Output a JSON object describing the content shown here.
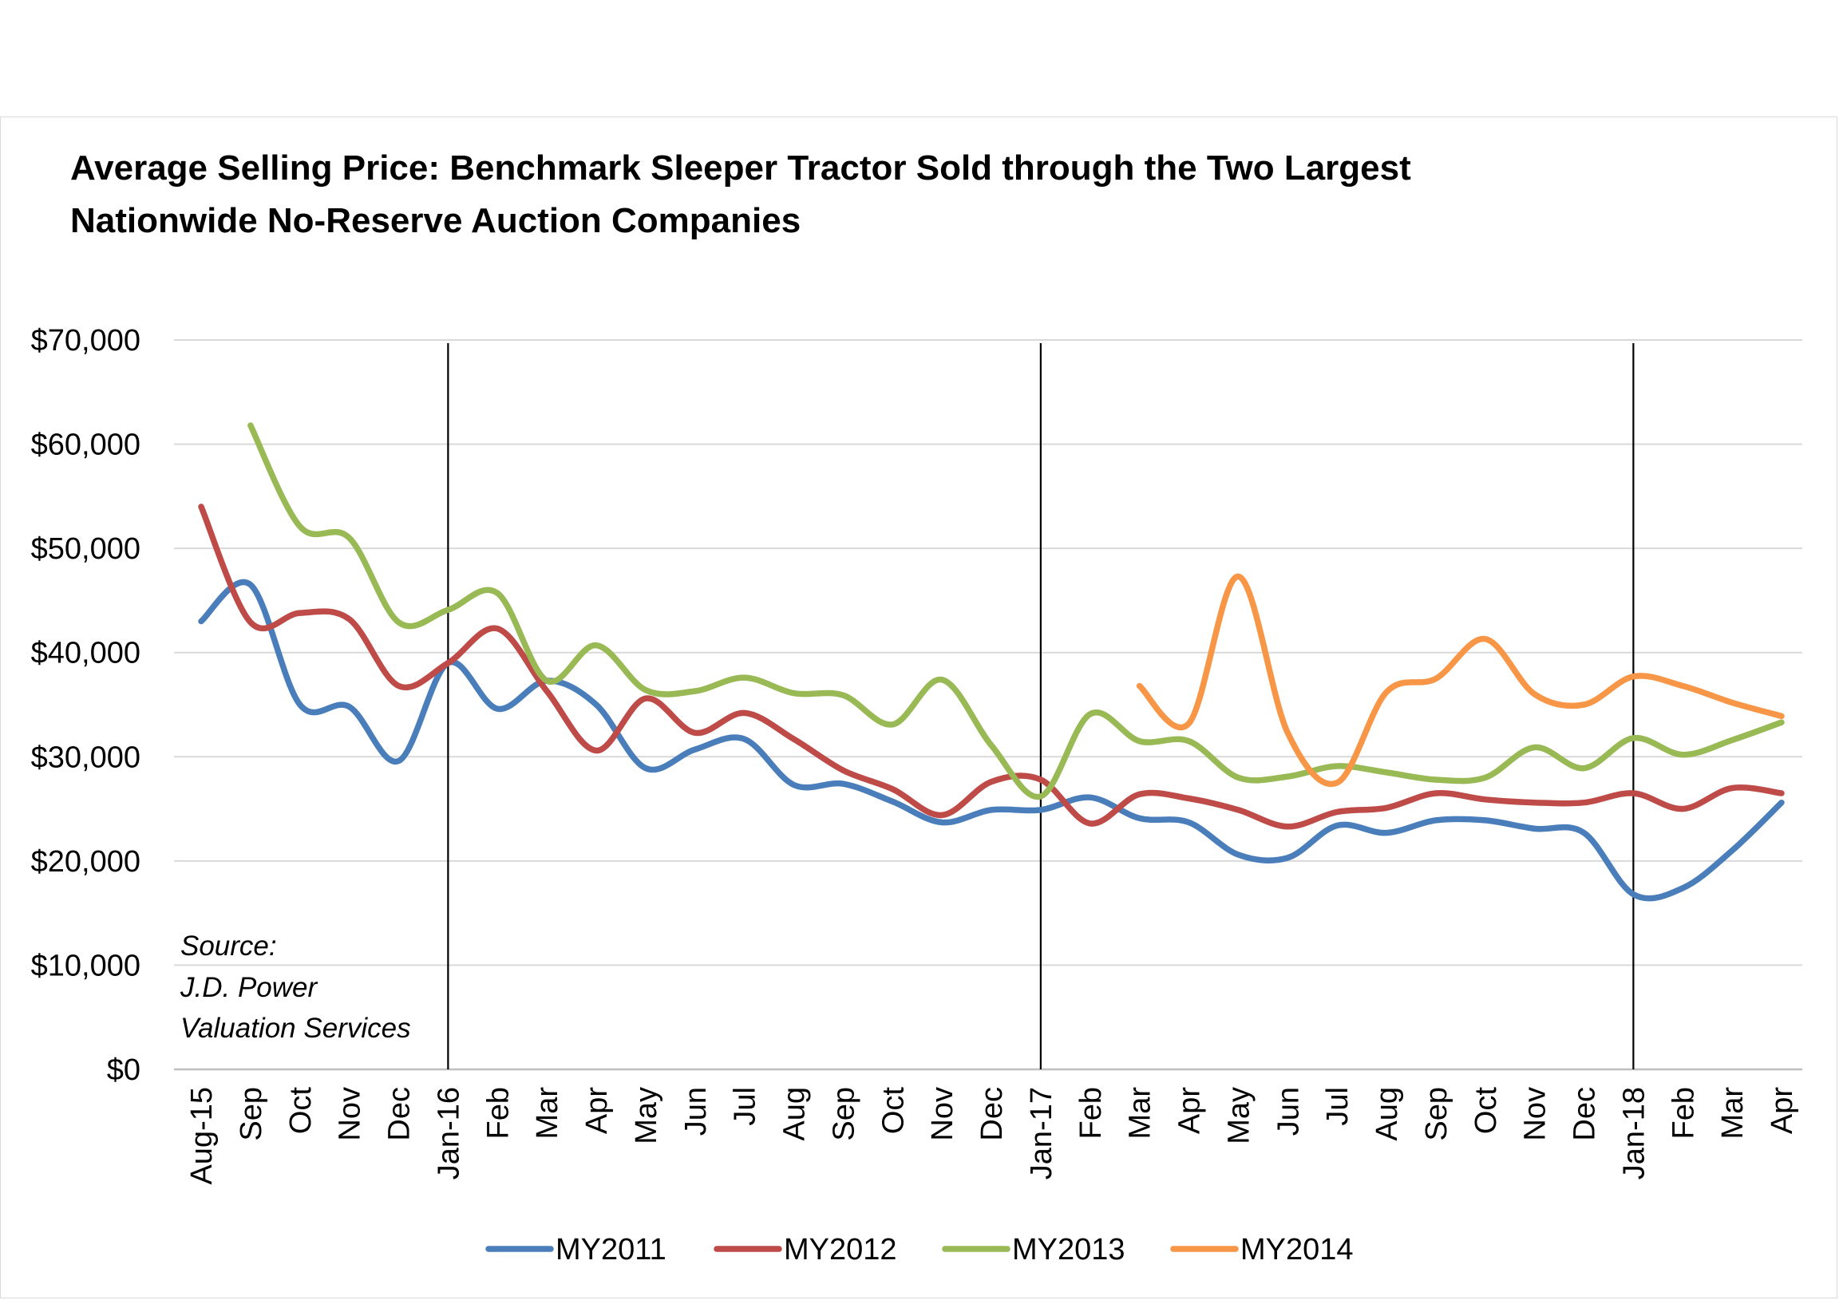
{
  "chart_data": {
    "type": "line",
    "title_lines": [
      "Average Selling Price: Benchmark Sleeper Tractor Sold through the Two Largest",
      "Nationwide No-Reserve Auction Companies"
    ],
    "categories": [
      "Aug-15",
      "Sep",
      "Oct",
      "Nov",
      "Dec",
      "Jan-16",
      "Feb",
      "Mar",
      "Apr",
      "May",
      "Jun",
      "Jul",
      "Aug",
      "Sep",
      "Oct",
      "Nov",
      "Dec",
      "Jan-17",
      "Feb",
      "Mar",
      "Apr",
      "May",
      "Jun",
      "Jul",
      "Aug",
      "Sep",
      "Oct",
      "Nov",
      "Dec",
      "Jan-18",
      "Feb",
      "Mar",
      "Apr"
    ],
    "y_ticks": [
      "$0",
      "$10,000",
      "$20,000",
      "$30,000",
      "$40,000",
      "$50,000",
      "$60,000",
      "$70,000"
    ],
    "ylim": [
      0,
      70000
    ],
    "y_step": 10000,
    "grid": true,
    "year_markers": [
      "Jan-16",
      "Jan-17",
      "Jan-18"
    ],
    "legend_position": "bottom",
    "source_lines": [
      "Source:",
      "J.D. Power",
      "Valuation Services"
    ],
    "series": [
      {
        "name": "MY2011",
        "color": "#4a7ebb",
        "values": [
          43000,
          46500,
          35000,
          34800,
          29600,
          39000,
          34600,
          37300,
          35000,
          28900,
          30700,
          31700,
          27300,
          27400,
          25700,
          23700,
          24900,
          24900,
          26100,
          24100,
          23700,
          20600,
          20300,
          23400,
          22700,
          23900,
          23900,
          23100,
          22700,
          16800,
          17400,
          21000,
          25600
        ]
      },
      {
        "name": "MY2012",
        "color": "#be4b48",
        "values": [
          54000,
          42900,
          43800,
          43200,
          36800,
          39000,
          42300,
          36300,
          30600,
          35600,
          32300,
          34200,
          31700,
          28700,
          26900,
          24400,
          27600,
          27800,
          23600,
          26400,
          26000,
          24900,
          23300,
          24700,
          25100,
          26500,
          25900,
          25600,
          25600,
          26500,
          25000,
          27000,
          26500
        ]
      },
      {
        "name": "MY2013",
        "color": "#98b954",
        "values": [
          null,
          61800,
          52100,
          51000,
          42900,
          44100,
          45700,
          37300,
          40700,
          36400,
          36300,
          37600,
          36100,
          35900,
          33100,
          37400,
          31100,
          26200,
          34100,
          31500,
          31500,
          28000,
          28100,
          29100,
          28500,
          27800,
          28000,
          30900,
          28900,
          31800,
          30200,
          31600,
          33300
        ]
      },
      {
        "name": "MY2014",
        "color": "#f79646",
        "values": [
          null,
          null,
          null,
          null,
          null,
          null,
          null,
          null,
          null,
          null,
          null,
          null,
          null,
          null,
          null,
          null,
          null,
          null,
          null,
          36800,
          33200,
          47300,
          32300,
          27500,
          36200,
          37500,
          41300,
          36000,
          35000,
          37700,
          36800,
          35200,
          33900
        ]
      }
    ]
  }
}
